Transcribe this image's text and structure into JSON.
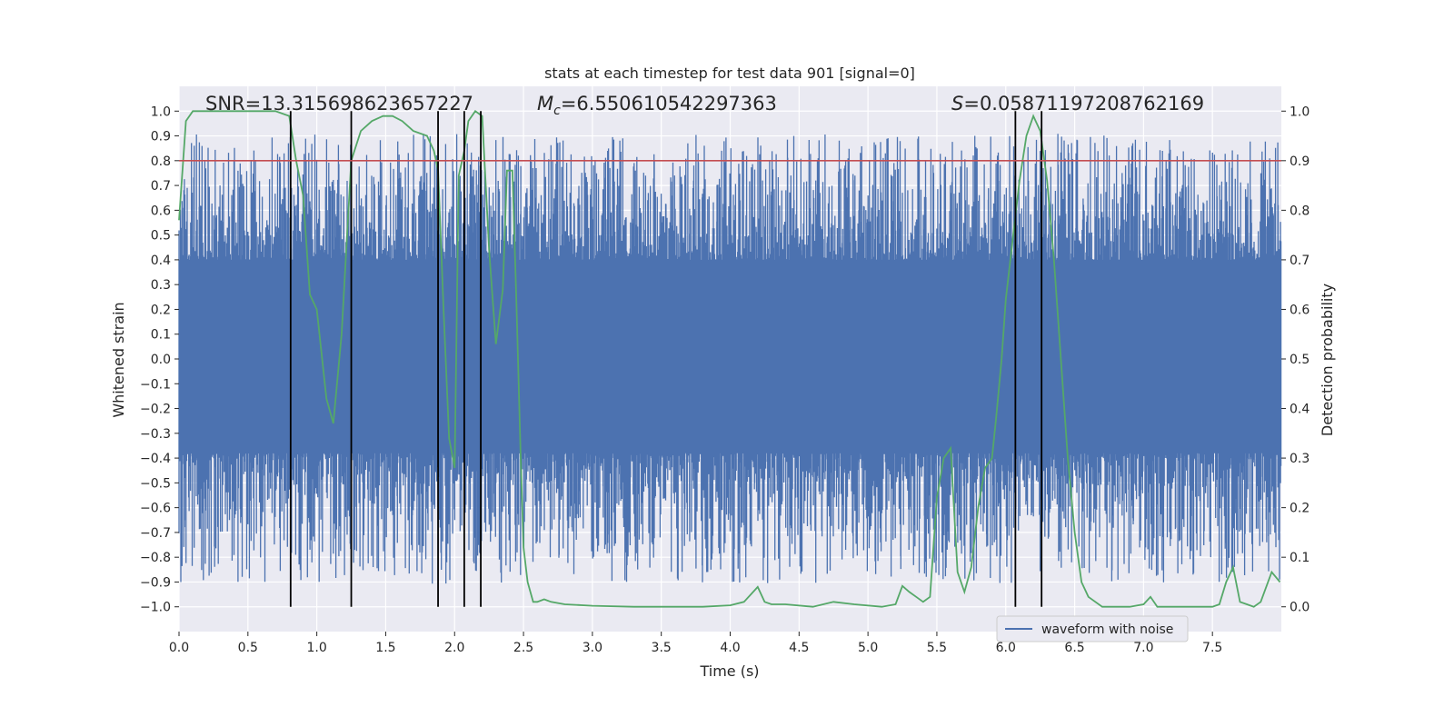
{
  "chart_data": {
    "type": "line",
    "title": "stats at each timestep for test data 901 [signal=0]",
    "xlabel": "Time (s)",
    "ylabel_left": "Whitened strain",
    "ylabel_right": "Detection probability",
    "xlim": [
      0,
      8
    ],
    "ylim_left": [
      -1.1,
      1.1
    ],
    "ylim_right": [
      -0.05,
      1.05
    ],
    "x_ticks": [
      "0.0",
      "0.5",
      "1.0",
      "1.5",
      "2.0",
      "2.5",
      "3.0",
      "3.5",
      "4.0",
      "4.5",
      "5.0",
      "5.5",
      "6.0",
      "6.5",
      "7.0",
      "7.5"
    ],
    "y_left_ticks": [
      "1.0",
      "0.9",
      "0.8",
      "0.7",
      "0.6",
      "0.5",
      "0.4",
      "0.3",
      "0.2",
      "0.1",
      "0.0",
      "−0.1",
      "−0.2",
      "−0.3",
      "−0.4",
      "−0.5",
      "−0.6",
      "−0.7",
      "−0.8",
      "−0.9",
      "−1.0"
    ],
    "y_right_ticks": [
      "1.0",
      "0.9",
      "0.8",
      "0.7",
      "0.6",
      "0.5",
      "0.4",
      "0.3",
      "0.2",
      "0.1",
      "0.0"
    ],
    "annotations": {
      "snr": "SNR=13.315698623657227",
      "mc_symbol": "M",
      "mc_sub": "c",
      "mc_value": "=6.550610542297363",
      "s_symbol": "S",
      "s_value": "=0.05871197208762169"
    },
    "threshold": {
      "value": 0.9,
      "axis": "right",
      "color": "#c44e52"
    },
    "vertical_lines_x": [
      0.81,
      1.25,
      1.88,
      2.07,
      2.19,
      6.07,
      6.26
    ],
    "series": [
      {
        "name": "waveform with noise",
        "axis": "left",
        "color": "#4c72b0",
        "envelope": {
          "typical_max": 0.4,
          "typical_min": -0.38,
          "peak_max": 1.0,
          "peak_min": -1.0
        }
      },
      {
        "axis": "right",
        "color": "#55a868",
        "x": [
          0.0,
          0.05,
          0.1,
          0.2,
          0.3,
          0.5,
          0.7,
          0.8,
          0.85,
          0.9,
          0.95,
          1.0,
          1.07,
          1.12,
          1.18,
          1.25,
          1.32,
          1.4,
          1.48,
          1.55,
          1.62,
          1.7,
          1.8,
          1.85,
          1.88,
          1.92,
          1.96,
          2.0,
          2.03,
          2.07,
          2.1,
          2.15,
          2.2,
          2.25,
          2.3,
          2.35,
          2.38,
          2.42,
          2.45,
          2.48,
          2.5,
          2.53,
          2.57,
          2.6,
          2.65,
          2.7,
          2.8,
          3.0,
          3.3,
          3.5,
          3.8,
          4.0,
          4.1,
          4.2,
          4.25,
          4.3,
          4.4,
          4.6,
          4.75,
          4.9,
          5.1,
          5.2,
          5.25,
          5.3,
          5.35,
          5.4,
          5.45,
          5.5,
          5.55,
          5.6,
          5.65,
          5.7,
          5.75,
          5.8,
          5.85,
          5.9,
          5.93,
          5.97,
          6.0,
          6.05,
          6.1,
          6.15,
          6.2,
          6.25,
          6.3,
          6.35,
          6.4,
          6.45,
          6.5,
          6.55,
          6.6,
          6.7,
          6.8,
          6.9,
          7.0,
          7.05,
          7.1,
          7.2,
          7.3,
          7.45,
          7.5,
          7.55,
          7.6,
          7.65,
          7.7,
          7.75,
          7.8,
          7.85,
          7.93,
          7.99
        ],
        "y": [
          0.78,
          0.98,
          1.0,
          1.0,
          1.0,
          1.0,
          1.0,
          0.99,
          0.9,
          0.83,
          0.63,
          0.6,
          0.42,
          0.37,
          0.55,
          0.9,
          0.96,
          0.98,
          0.99,
          0.99,
          0.98,
          0.96,
          0.95,
          0.92,
          0.88,
          0.6,
          0.34,
          0.28,
          0.87,
          0.92,
          0.98,
          1.0,
          0.99,
          0.72,
          0.53,
          0.64,
          0.88,
          0.88,
          0.6,
          0.3,
          0.12,
          0.05,
          0.01,
          0.01,
          0.015,
          0.01,
          0.005,
          0.002,
          0.0,
          0.0,
          0.0,
          0.003,
          0.01,
          0.04,
          0.01,
          0.005,
          0.005,
          0.0,
          0.01,
          0.005,
          0.0,
          0.005,
          0.042,
          0.03,
          0.02,
          0.01,
          0.02,
          0.22,
          0.3,
          0.32,
          0.07,
          0.03,
          0.08,
          0.2,
          0.28,
          0.3,
          0.38,
          0.5,
          0.62,
          0.74,
          0.86,
          0.95,
          0.99,
          0.96,
          0.86,
          0.7,
          0.5,
          0.3,
          0.15,
          0.05,
          0.02,
          0.0,
          0.0,
          0.0,
          0.005,
          0.02,
          0.0,
          0.0,
          0.0,
          0.0,
          0.0,
          0.005,
          0.05,
          0.08,
          0.01,
          0.005,
          0.0,
          0.01,
          0.07,
          0.05
        ]
      }
    ],
    "legend": {
      "placement": "bottom-right"
    }
  }
}
